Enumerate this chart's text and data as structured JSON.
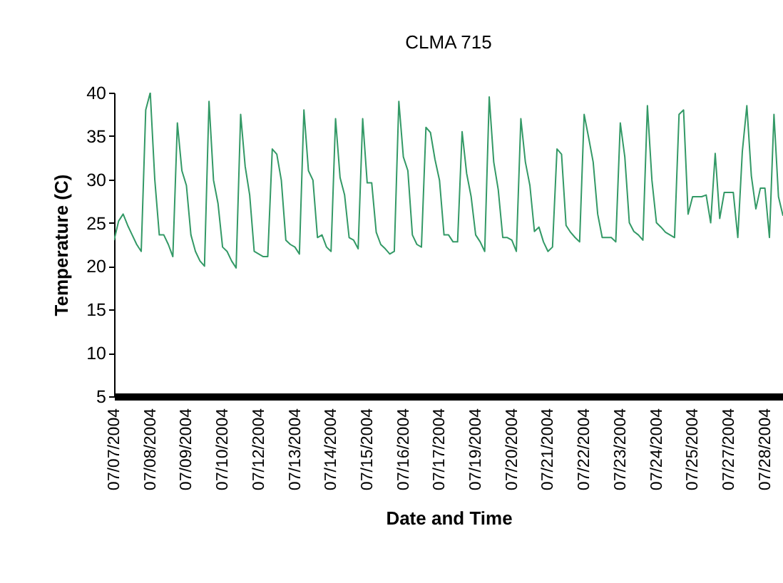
{
  "chart_data": {
    "type": "line",
    "title": "CLMA 715",
    "xlabel": "Date and Time",
    "ylabel": "Temperature (C)",
    "categories": [
      "07/07/2004",
      null,
      null,
      null,
      null,
      null,
      null,
      null,
      "07/08/2004",
      null,
      null,
      null,
      null,
      null,
      null,
      null,
      "07/09/2004",
      null,
      null,
      null,
      null,
      null,
      null,
      null,
      "07/10/2004",
      null,
      null,
      null,
      null,
      null,
      null,
      null,
      "07/12/2004",
      null,
      null,
      null,
      null,
      null,
      null,
      null,
      "07/13/2004",
      null,
      null,
      null,
      null,
      null,
      null,
      null,
      "07/14/2004",
      null,
      null,
      null,
      null,
      null,
      null,
      null,
      "07/15/2004",
      null,
      null,
      null,
      null,
      null,
      null,
      null,
      "07/16/2004",
      null,
      null,
      null,
      null,
      null,
      null,
      null,
      "07/17/2004",
      null,
      null,
      null,
      null,
      null,
      null,
      null,
      "07/19/2004",
      null,
      null,
      null,
      null,
      null,
      null,
      null,
      "07/20/2004",
      null,
      null,
      null,
      null,
      null,
      null,
      null,
      "07/21/2004",
      null,
      null,
      null,
      null,
      null,
      null,
      null,
      "07/22/2004",
      null,
      null,
      null,
      null,
      null,
      null,
      null,
      "07/23/2004",
      null,
      null,
      null,
      null,
      null,
      null,
      null,
      "07/24/2004",
      null,
      null,
      null,
      null,
      null,
      null,
      null,
      "07/25/2004",
      null,
      null,
      null,
      null,
      null,
      null,
      null,
      "07/27/2004",
      null,
      null,
      null,
      null,
      null,
      null,
      null,
      "07/28/2004",
      null,
      null,
      null,
      null
    ],
    "series": [
      {
        "color": "#339966",
        "values": [
          23.0,
          25.2,
          26,
          24.7,
          23.6,
          22.5,
          21.7,
          38,
          40,
          30,
          23.6,
          23.6,
          22.5,
          21.1,
          36.5,
          31,
          29.3,
          23.6,
          21.7,
          20.6,
          20,
          39,
          29.9,
          27.2,
          22.2,
          21.7,
          20.6,
          19.8,
          37.5,
          31.5,
          28.2,
          21.7,
          21.4,
          21.1,
          21.1,
          33.5,
          32.9,
          29.9,
          23,
          22.5,
          22.2,
          21.4,
          38,
          31,
          29.9,
          23.3,
          23.6,
          22.2,
          21.7,
          37,
          30.2,
          28.2,
          23.3,
          23,
          22,
          37,
          29.6,
          29.6,
          23.9,
          22.5,
          22,
          21.4,
          21.7,
          39,
          32.6,
          31,
          23.6,
          22.5,
          22.2,
          36,
          35.4,
          32.3,
          29.9,
          23.6,
          23.6,
          22.8,
          22.8,
          35.5,
          30.7,
          28,
          23.6,
          22.8,
          21.7,
          39.5,
          32,
          28.8,
          23.3,
          23.3,
          23,
          21.7,
          37,
          32,
          29.3,
          24,
          24.5,
          22.8,
          21.7,
          22.2,
          33.5,
          32.9,
          24.7,
          23.9,
          23.3,
          22.8,
          37.5,
          34.8,
          32,
          26,
          23.3,
          23.3,
          23.3,
          22.8,
          36.5,
          32.6,
          25,
          24,
          23.6,
          23,
          38.5,
          29.9,
          25,
          24.5,
          23.9,
          23.6,
          23.3,
          37.5,
          38,
          26,
          28,
          28,
          28,
          28.2,
          25,
          33,
          25.5,
          28.5,
          28.5,
          28.5,
          23.3,
          33.2,
          38.5,
          30.4,
          26.6,
          29,
          29,
          23.3,
          37.5,
          28,
          25.8
        ]
      }
    ],
    "ylim": [
      5,
      40
    ],
    "yticks": [
      5,
      10,
      15,
      20,
      25,
      30,
      35,
      40
    ],
    "grid": false,
    "line_style": "solid",
    "marker": "none"
  }
}
